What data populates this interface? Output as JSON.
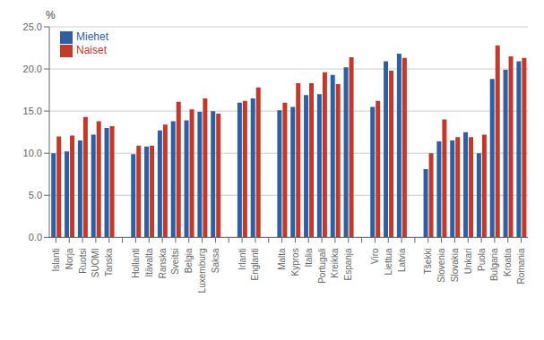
{
  "chart_data": {
    "type": "bar",
    "categories": [
      "Islanti",
      "Norja",
      "Ruotsi",
      "SUOMI",
      "Tanska",
      null,
      "Hollanti",
      "Itävalta",
      "Ranska",
      "Sveitsi",
      "Belgia",
      "Luxemburg",
      "Saksa",
      null,
      "Irlanti",
      "Englanti",
      null,
      "Malta",
      "Kypros",
      "Italia",
      "Portugali",
      "Kreikka",
      "Espanja",
      null,
      "Viro",
      "Liettua",
      "Latvia",
      null,
      "Tšekki",
      "Slovenia",
      "Slovakia",
      "Unkari",
      "Puola",
      "Bulgaria",
      "Kroatia",
      "Romania"
    ],
    "series": [
      {
        "name": "Miehet",
        "color": "#2E5FA3",
        "values": [
          10.0,
          10.2,
          11.5,
          12.2,
          13.0,
          null,
          9.9,
          10.8,
          12.7,
          13.8,
          13.9,
          14.9,
          15.0,
          null,
          16.0,
          16.5,
          null,
          15.1,
          15.5,
          16.9,
          17.0,
          19.3,
          20.2,
          null,
          15.5,
          20.9,
          21.8,
          null,
          8.1,
          11.4,
          11.5,
          12.5,
          10.0,
          18.8,
          19.9,
          20.9
        ]
      },
      {
        "name": "Naiset",
        "color": "#C0392B",
        "values": [
          12.0,
          12.1,
          14.3,
          13.8,
          13.2,
          null,
          10.9,
          10.9,
          13.4,
          16.1,
          15.2,
          16.5,
          14.7,
          null,
          16.2,
          17.8,
          null,
          16.0,
          18.3,
          18.3,
          19.6,
          18.2,
          21.4,
          null,
          16.2,
          19.8,
          21.3,
          null,
          10.0,
          14.0,
          11.9,
          11.9,
          12.2,
          22.8,
          21.5,
          21.3
        ]
      }
    ],
    "ylabel": "%",
    "ylim": [
      0,
      25
    ],
    "yticks": [
      {
        "value": 0,
        "label": "0.0"
      },
      {
        "value": 5,
        "label": "5.0"
      },
      {
        "value": 10,
        "label": "10.0"
      },
      {
        "value": 15,
        "label": "15.0"
      },
      {
        "value": 20,
        "label": "20.0"
      },
      {
        "value": 25,
        "label": "25.0"
      }
    ],
    "grid": true,
    "legend": "upper left"
  }
}
